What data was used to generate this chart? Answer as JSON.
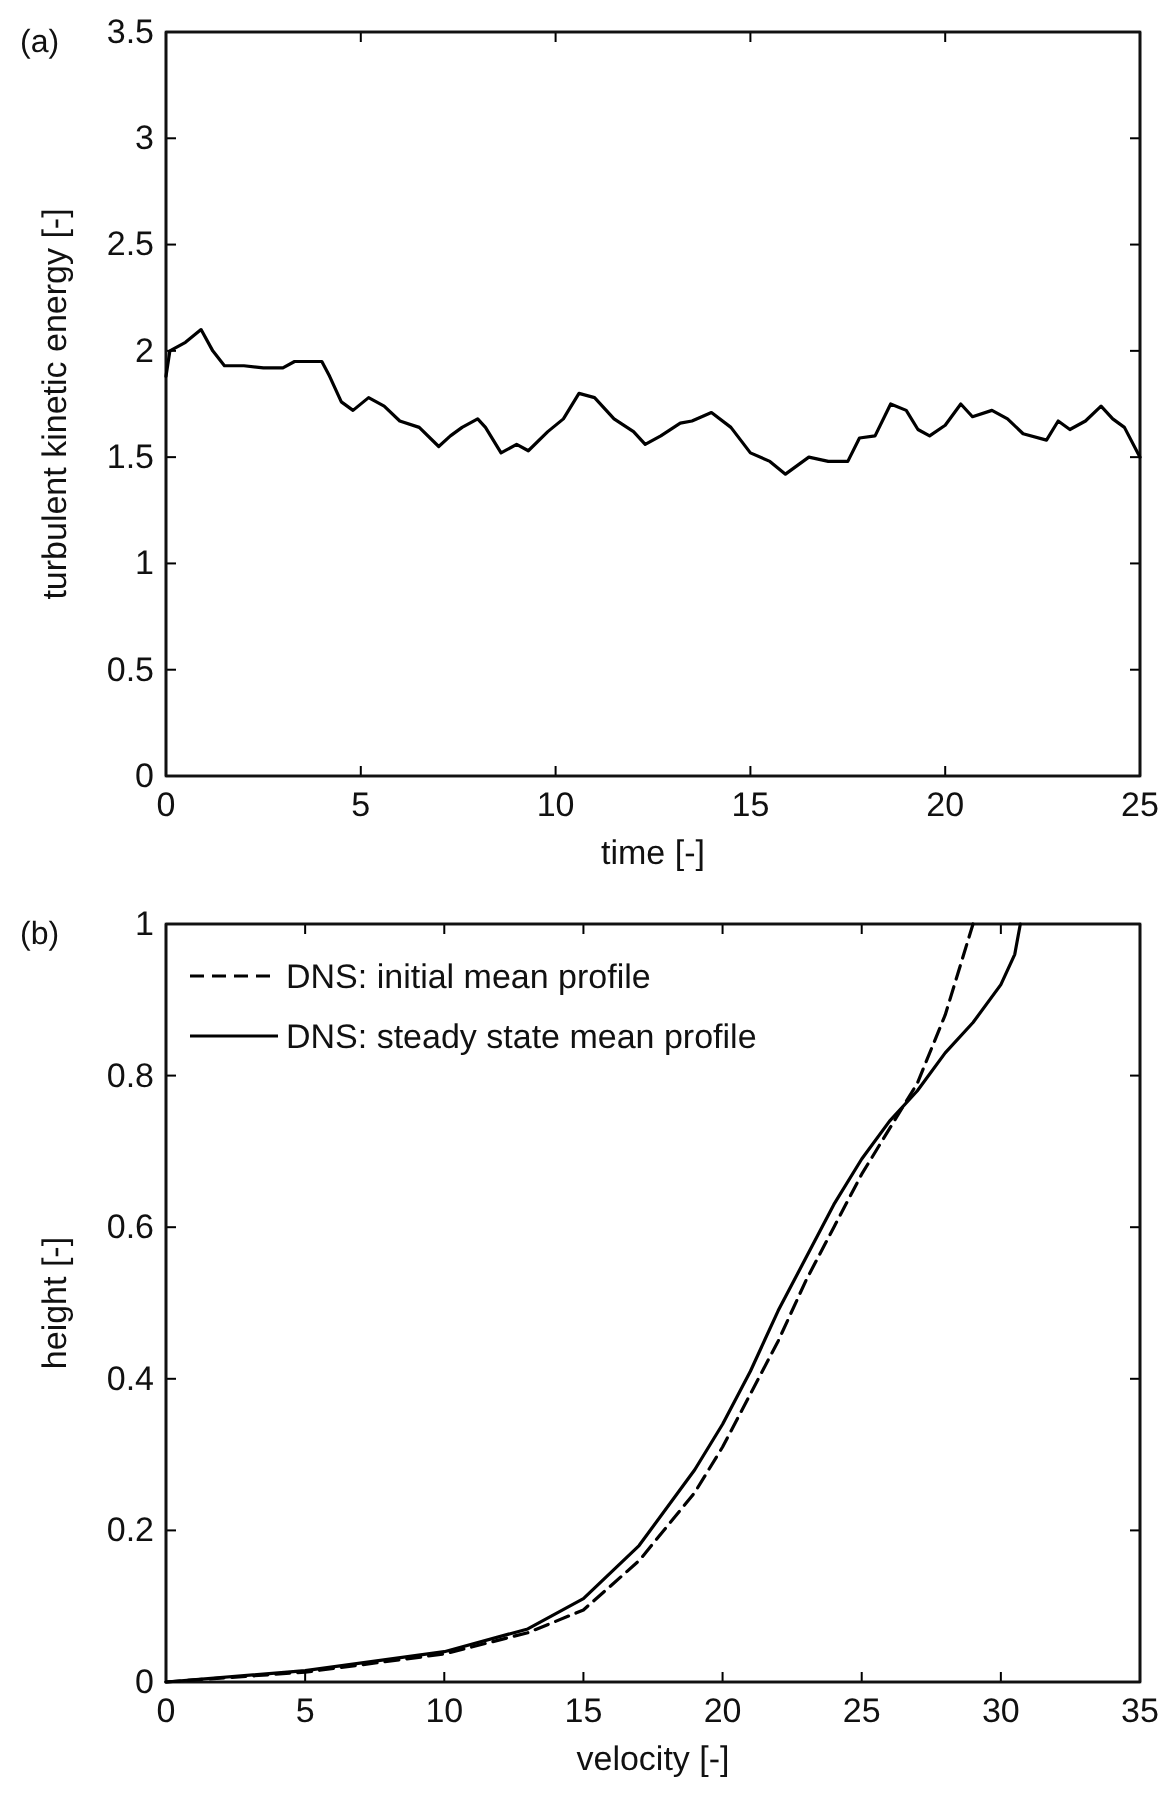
{
  "chart_data": [
    {
      "type": "line",
      "title": "(a)",
      "xlabel": "time [-]",
      "ylabel": "turbulent kinetic energy [-]",
      "xlim": [
        0,
        25
      ],
      "xticks": [
        0,
        5,
        10,
        15,
        20,
        25
      ],
      "ylim": [
        0,
        3.5
      ],
      "yticks": [
        0,
        0.5,
        1,
        1.5,
        2,
        2.5,
        3,
        3.5
      ],
      "grid": false,
      "legend": false,
      "x": [
        0,
        0.1,
        0.5,
        0.9,
        1.2,
        1.5,
        2,
        2.5,
        3,
        3.3,
        4,
        4.2,
        4.5,
        4.8,
        5.2,
        5.6,
        6,
        6.5,
        7,
        7.3,
        7.6,
        8,
        8.2,
        8.6,
        9,
        9.3,
        9.8,
        10.2,
        10.6,
        11,
        11.5,
        12,
        12.3,
        12.7,
        13.2,
        13.5,
        14,
        14.5,
        15,
        15.5,
        15.9,
        16.5,
        17,
        17.5,
        17.8,
        18.2,
        18.6,
        19,
        19.3,
        19.6,
        20,
        20.4,
        20.7,
        21.2,
        21.6,
        22,
        22.6,
        22.9,
        23.2,
        23.6,
        24,
        24.3,
        24.6,
        25
      ],
      "series": [
        {
          "color": "#000000",
          "line_style": "solid",
          "values": [
            1.88,
            2.0,
            2.04,
            2.1,
            2.0,
            1.93,
            1.93,
            1.92,
            1.92,
            1.95,
            1.95,
            1.88,
            1.76,
            1.72,
            1.78,
            1.74,
            1.67,
            1.64,
            1.55,
            1.6,
            1.64,
            1.68,
            1.64,
            1.52,
            1.56,
            1.53,
            1.62,
            1.68,
            1.8,
            1.78,
            1.68,
            1.62,
            1.56,
            1.6,
            1.66,
            1.67,
            1.71,
            1.64,
            1.52,
            1.48,
            1.42,
            1.5,
            1.48,
            1.48,
            1.59,
            1.6,
            1.75,
            1.72,
            1.63,
            1.6,
            1.65,
            1.75,
            1.69,
            1.72,
            1.68,
            1.61,
            1.58,
            1.67,
            1.63,
            1.67,
            1.74,
            1.68,
            1.64,
            1.5
          ]
        }
      ]
    },
    {
      "type": "line",
      "title": "(b)",
      "xlabel": "velocity [-]",
      "ylabel": "height [-]",
      "xlim": [
        0,
        35
      ],
      "xticks": [
        0,
        5,
        10,
        15,
        20,
        25,
        30,
        35
      ],
      "ylim": [
        0,
        1
      ],
      "yticks": [
        0,
        0.2,
        0.4,
        0.6,
        0.8,
        1
      ],
      "grid": false,
      "legend": "top left",
      "series": [
        {
          "name": "DNS: initial mean profile",
          "color": "#000000",
          "line_style": "dashed",
          "x": [
            0,
            5,
            10,
            13,
            15,
            17,
            19,
            20,
            21,
            22,
            23,
            24,
            25,
            26,
            27,
            28,
            29
          ],
          "values": [
            0,
            0.013,
            0.037,
            0.065,
            0.095,
            0.16,
            0.25,
            0.31,
            0.38,
            0.45,
            0.53,
            0.6,
            0.67,
            0.73,
            0.79,
            0.88,
            1.0
          ]
        },
        {
          "name": "DNS: steady state mean profile",
          "color": "#000000",
          "line_style": "solid",
          "x": [
            0,
            5,
            10,
            13,
            15,
            17,
            19,
            20,
            21,
            22,
            23,
            24,
            25,
            26,
            27,
            28,
            29,
            30,
            30.5,
            30.7
          ],
          "values": [
            0,
            0.015,
            0.04,
            0.07,
            0.11,
            0.18,
            0.28,
            0.34,
            0.41,
            0.49,
            0.56,
            0.63,
            0.69,
            0.74,
            0.78,
            0.83,
            0.87,
            0.92,
            0.96,
            1.0
          ]
        }
      ]
    }
  ]
}
